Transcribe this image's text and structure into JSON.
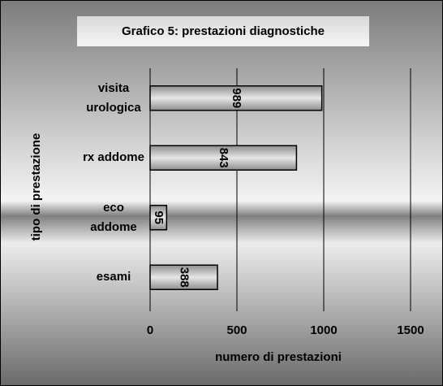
{
  "chart_data": {
    "type": "bar",
    "orientation": "horizontal",
    "title": "Grafico 5: prestazioni diagnostiche",
    "categories": [
      "visita\nurologica",
      "rx addome",
      "eco\naddome",
      "esami"
    ],
    "values": [
      989,
      843,
      95,
      388
    ],
    "color": "#bdbdbd",
    "xlim": [
      0,
      1500
    ],
    "xticks": [
      0,
      500,
      1000,
      1500
    ],
    "xlabel": "numero di prestazioni",
    "ylabel": "tipo di prestazione",
    "grid": true
  }
}
